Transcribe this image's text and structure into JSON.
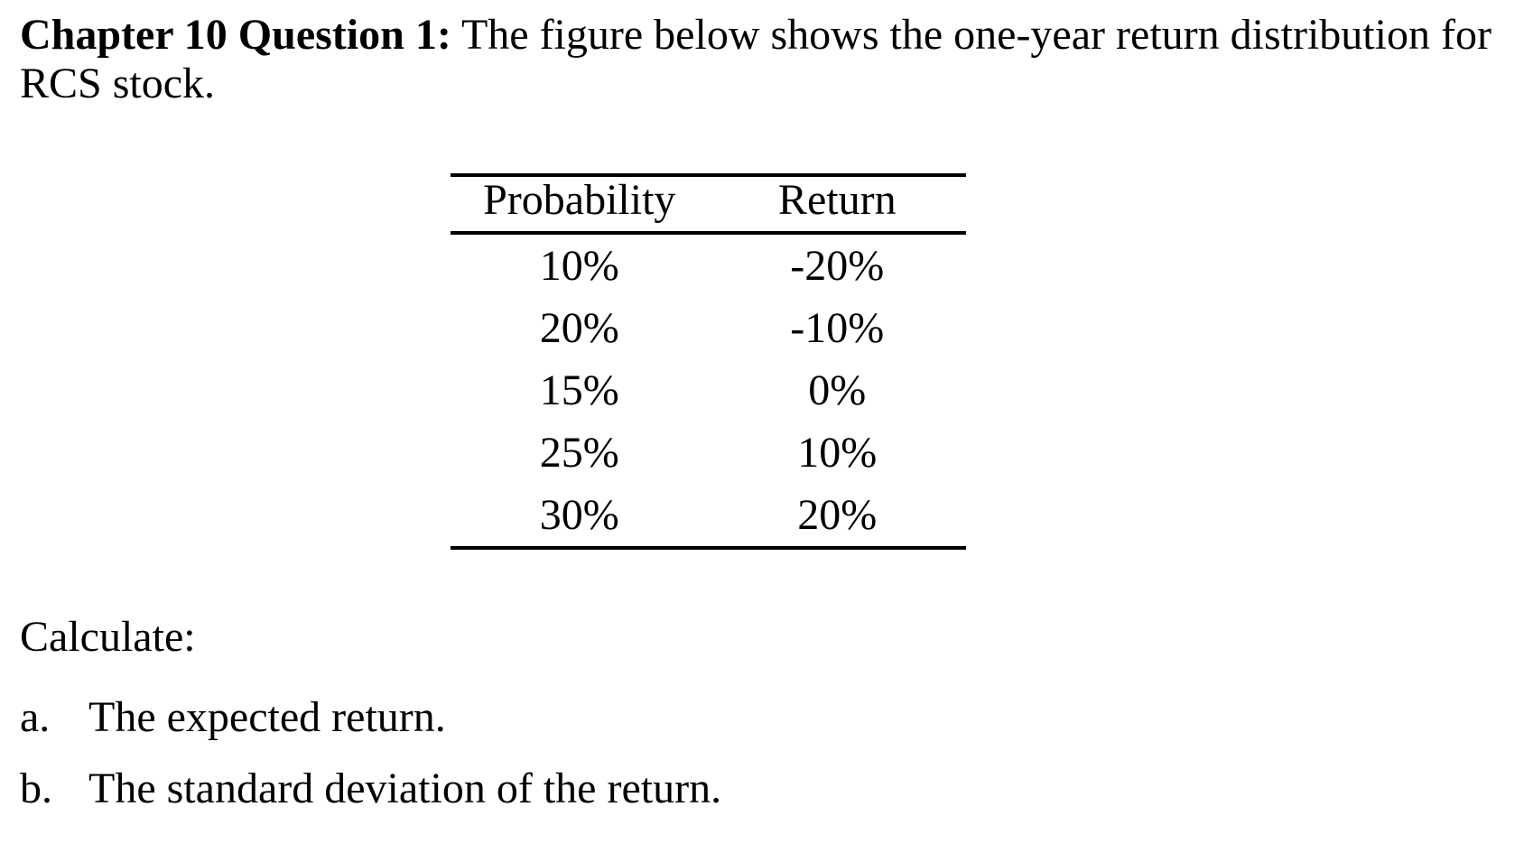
{
  "colors": {
    "text": "#000000",
    "background": "#ffffff"
  },
  "question": {
    "label": "Chapter 10 Question 1:",
    "intro_rest": "The figure below shows the one-year return distribution for",
    "intro_line2": "RCS stock.",
    "calculate_label": "Calculate:",
    "parts": [
      {
        "marker": "a.",
        "text": "The expected return."
      },
      {
        "marker": "b.",
        "text": "The standard deviation of the return."
      }
    ]
  },
  "table": {
    "columns": [
      "Probability",
      "Return"
    ],
    "rows": [
      [
        "10%",
        "-20%"
      ],
      [
        "20%",
        "-10%"
      ],
      [
        "15%",
        "0%"
      ],
      [
        "25%",
        "10%"
      ],
      [
        "30%",
        "20%"
      ]
    ]
  }
}
